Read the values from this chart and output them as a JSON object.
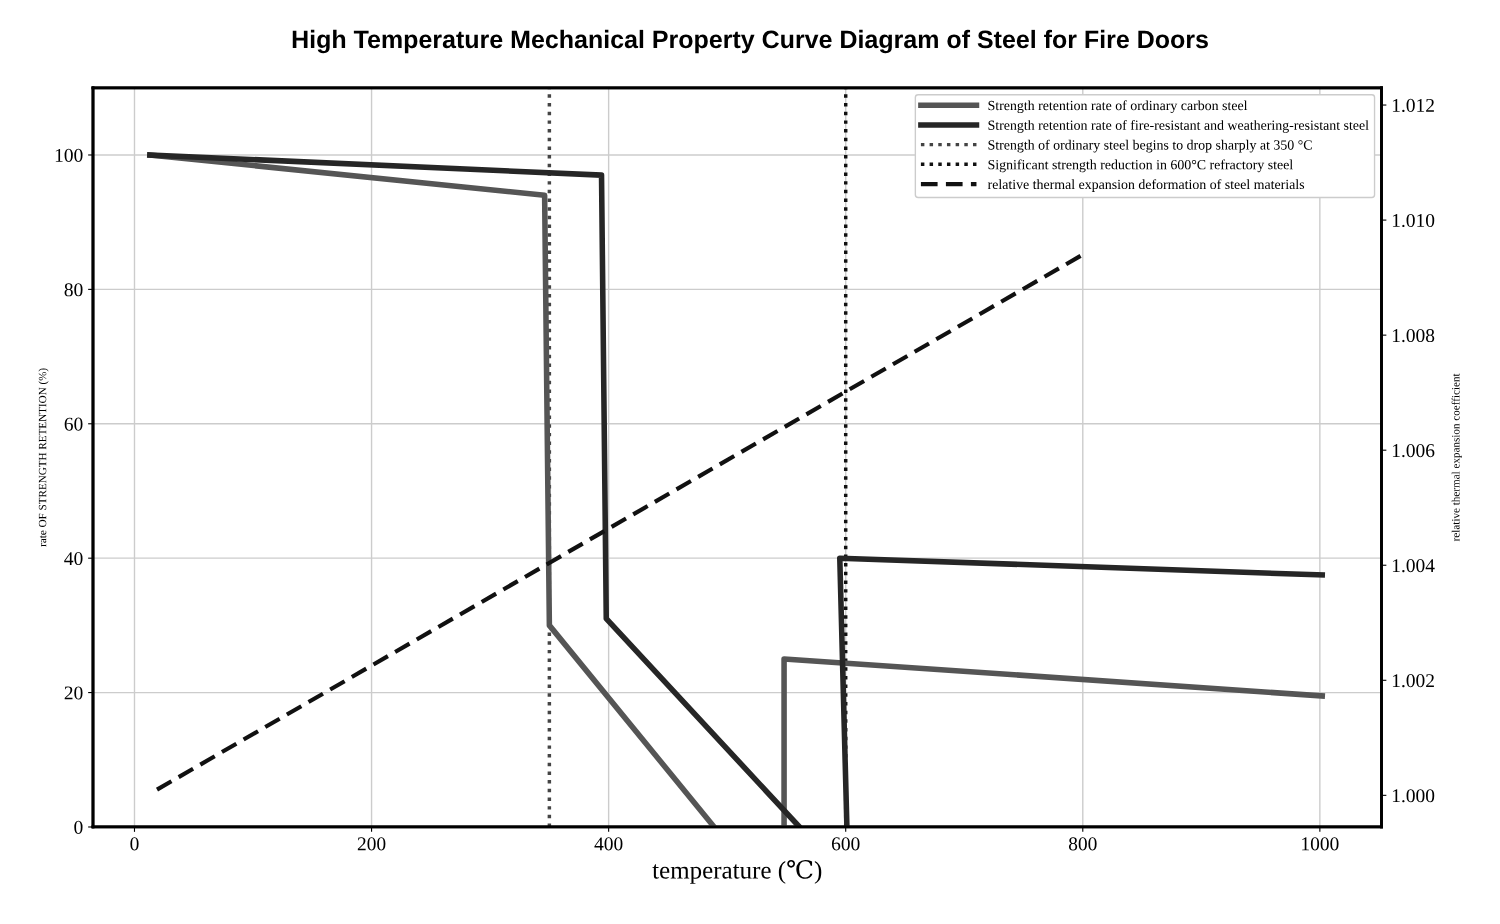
{
  "chart_data": {
    "type": "line",
    "title": "High Temperature Mechanical Property Curve Diagram of Steel for Fire Doors",
    "xlabel": "temperature (℃)",
    "ylabel": "rate OF STRENGTH RETENTION (%)",
    "y2label": "relative thermal expansion coefficient",
    "xlim": [
      -35,
      1052
    ],
    "xticks": [
      0,
      200,
      400,
      600,
      800,
      1000
    ],
    "ylim": [
      0,
      110
    ],
    "yticks": [
      0,
      20,
      40,
      60,
      80,
      100
    ],
    "y2lim": [
      0.99945,
      1.0123
    ],
    "y2ticks": [
      {
        "value": 1.0,
        "label": "1.000"
      },
      {
        "value": 1.002,
        "label": "1.002"
      },
      {
        "value": 1.004,
        "label": "1.004"
      },
      {
        "value": 1.006,
        "label": "1.006"
      },
      {
        "value": 1.008,
        "label": "1.008"
      },
      {
        "value": 1.01,
        "label": "1.010"
      },
      {
        "value": 1.012,
        "label": "1.012"
      }
    ],
    "series": [
      {
        "name": "Strength retention rate of ordinary carbon steel",
        "color": "#555555",
        "line_style": "solid",
        "x": [
          13,
          346,
          350,
          489,
          null,
          548,
          548,
          1002
        ],
        "values": [
          100,
          94,
          30,
          0,
          null,
          0,
          25,
          19.5
        ]
      },
      {
        "name": "Strength retention rate of fire-resistant and weathering-resistant steel",
        "color": "#262626",
        "line_style": "solid",
        "x": [
          13,
          394,
          398,
          561,
          null,
          601,
          595,
          1002
        ],
        "values": [
          100,
          97,
          31,
          0,
          null,
          0,
          40,
          37.5
        ]
      },
      {
        "name": "Strength of ordinary steel begins to drop sharply at 350 °C",
        "color": "#444444",
        "line_style": "dotted",
        "x": [
          350,
          350
        ],
        "values": [
          0,
          110
        ]
      },
      {
        "name": "Significant strength reduction in 600°C refractory steel",
        "color": "#111111",
        "line_style": "dotted",
        "x": [
          600,
          600
        ],
        "values": [
          0,
          110
        ]
      },
      {
        "name": "relative thermal expansion deformation of steel materials",
        "color": "#111111",
        "line_style": "dashed",
        "axis": "y2",
        "x": [
          19,
          800
        ],
        "values": [
          1.0001,
          1.0094
        ]
      }
    ],
    "grid": true,
    "legend": "top right",
    "marker": "none"
  }
}
